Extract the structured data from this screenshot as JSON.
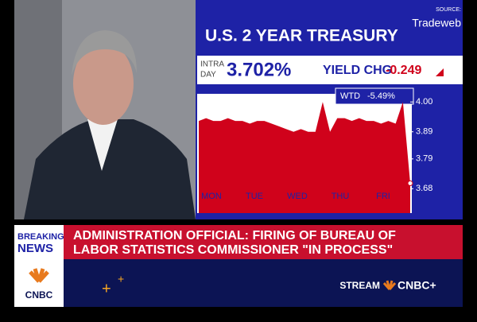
{
  "source": {
    "label": "SOURCE:",
    "name": "Tradeweb"
  },
  "panel": {
    "title": "U.S. 2 YEAR TREASURY",
    "intra_label": [
      "INTRA",
      "DAY"
    ],
    "yield": "3.702%",
    "chg_label": "YIELD CHG",
    "chg_value": "-0.249",
    "wtd_label": "WTD",
    "wtd_value": "-5.49%"
  },
  "chart": {
    "type": "area",
    "color": "#d0021b",
    "values": [
      3.93,
      3.94,
      3.93,
      3.93,
      3.94,
      3.93,
      3.93,
      3.92,
      3.93,
      3.93,
      3.92,
      3.91,
      3.9,
      3.89,
      3.9,
      3.89,
      3.89,
      4.0,
      3.89,
      3.94,
      3.94,
      3.93,
      3.94,
      3.93,
      3.93,
      3.92,
      3.93,
      3.92,
      4.0,
      3.7
    ],
    "days": [
      "MON",
      "TUE",
      "WED",
      "THU",
      "FRI"
    ],
    "ylim": [
      3.59,
      4.03
    ],
    "yticks": [
      3.68,
      3.79,
      3.89,
      {
        "value": 4,
        "label": "4.00"
      }
    ]
  },
  "banner": {
    "tag": [
      "BREAKING",
      "NEWS"
    ],
    "headline": [
      "ADMINISTRATION OFFICIAL: FIRING OF BUREAU OF",
      "LABOR STATISTICS COMMISSIONER \"IN PROCESS\""
    ]
  },
  "footer": {
    "network": "CNBC",
    "stream": "STREAM",
    "plus": "CNBC+"
  }
}
